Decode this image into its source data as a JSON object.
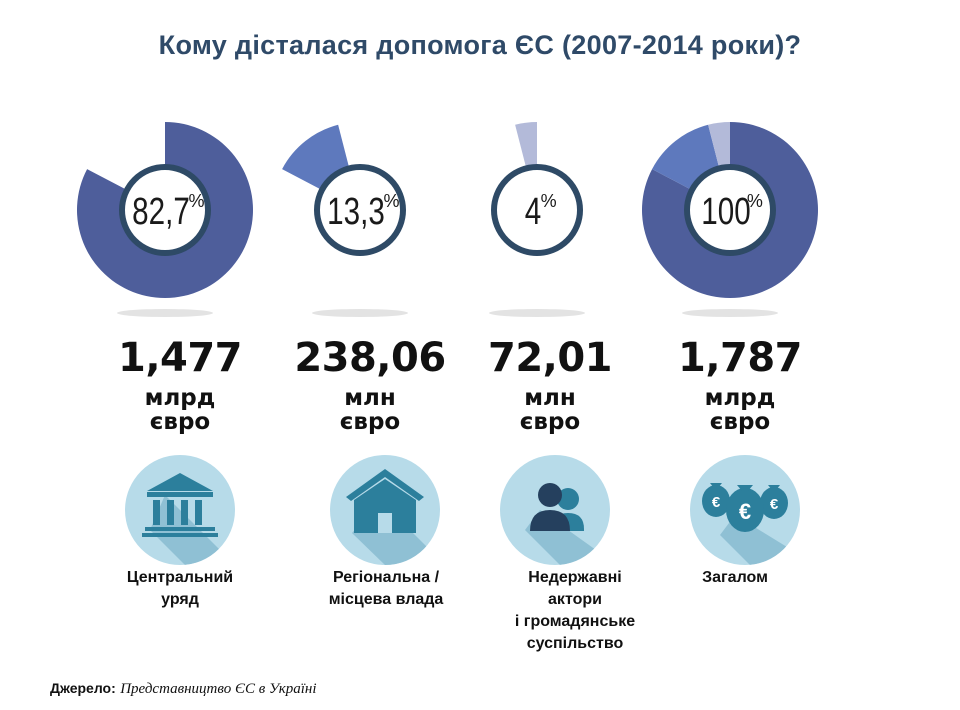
{
  "title": "Кому дісталася допомога ЄС (2007-2014 роки)?",
  "colors": {
    "main_slice": "#4e5e9b",
    "regional_slice": "#5e79bd",
    "ngo_slice": "#b3bad9",
    "ring": "#2e4a66",
    "icon_bg": "#b7dbe9",
    "icon_fg": "#2c7f9c"
  },
  "chart_data": {
    "type": "pie",
    "title": "Кому дісталася допомога ЄС (2007-2014 роки)?",
    "categories": [
      "Центральний уряд",
      "Регіональна / місцева влада",
      "Недержавні актори і громадянське суспільство",
      "Загалом"
    ],
    "values": [
      82.7,
      13.3,
      4,
      100
    ],
    "labels": [
      "82,7%",
      "13,3%",
      "4%",
      "100%"
    ],
    "amounts": [
      {
        "value": "1,477",
        "unit": "млрд",
        "currency": "євро"
      },
      {
        "value": "238,06",
        "unit": "млн",
        "currency": "євро"
      },
      {
        "value": "72,01",
        "unit": "млн",
        "currency": "євро"
      },
      {
        "value": "1,787",
        "unit": "млрд",
        "currency": "євро"
      }
    ],
    "total_composition": [
      {
        "name": "Центральний уряд",
        "value": 82.7
      },
      {
        "name": "Регіональна / місцева влада",
        "value": 13.3
      },
      {
        "name": "Недержавні актори і громадянське суспільство",
        "value": 4
      }
    ]
  },
  "items": [
    {
      "pct": "82,7",
      "pct_sign": "%",
      "amount": "1,477",
      "unit": "млрд",
      "currency": "євро",
      "label_lines": [
        "Центральний",
        "уряд"
      ],
      "icon": "government-building-icon"
    },
    {
      "pct": "13,3",
      "pct_sign": "%",
      "amount": "238,06",
      "unit": "млн",
      "currency": "євро",
      "label_lines": [
        "Регіональна /",
        "місцева влада"
      ],
      "icon": "house-icon"
    },
    {
      "pct": "4",
      "pct_sign": "%",
      "amount": "72,01",
      "unit": "млн",
      "currency": "євро",
      "label_lines": [
        "Недержавні",
        "актори",
        "і громадянське",
        "суспільство"
      ],
      "icon": "people-icon"
    },
    {
      "pct": "100",
      "pct_sign": "%",
      "amount": "1,787",
      "unit": "млрд",
      "currency": "євро",
      "label_lines": [
        "Загалом"
      ],
      "icon": "money-bags-icon"
    }
  ],
  "source": {
    "key": "Джерело:",
    "value": "Представництво ЄС в Україні"
  }
}
